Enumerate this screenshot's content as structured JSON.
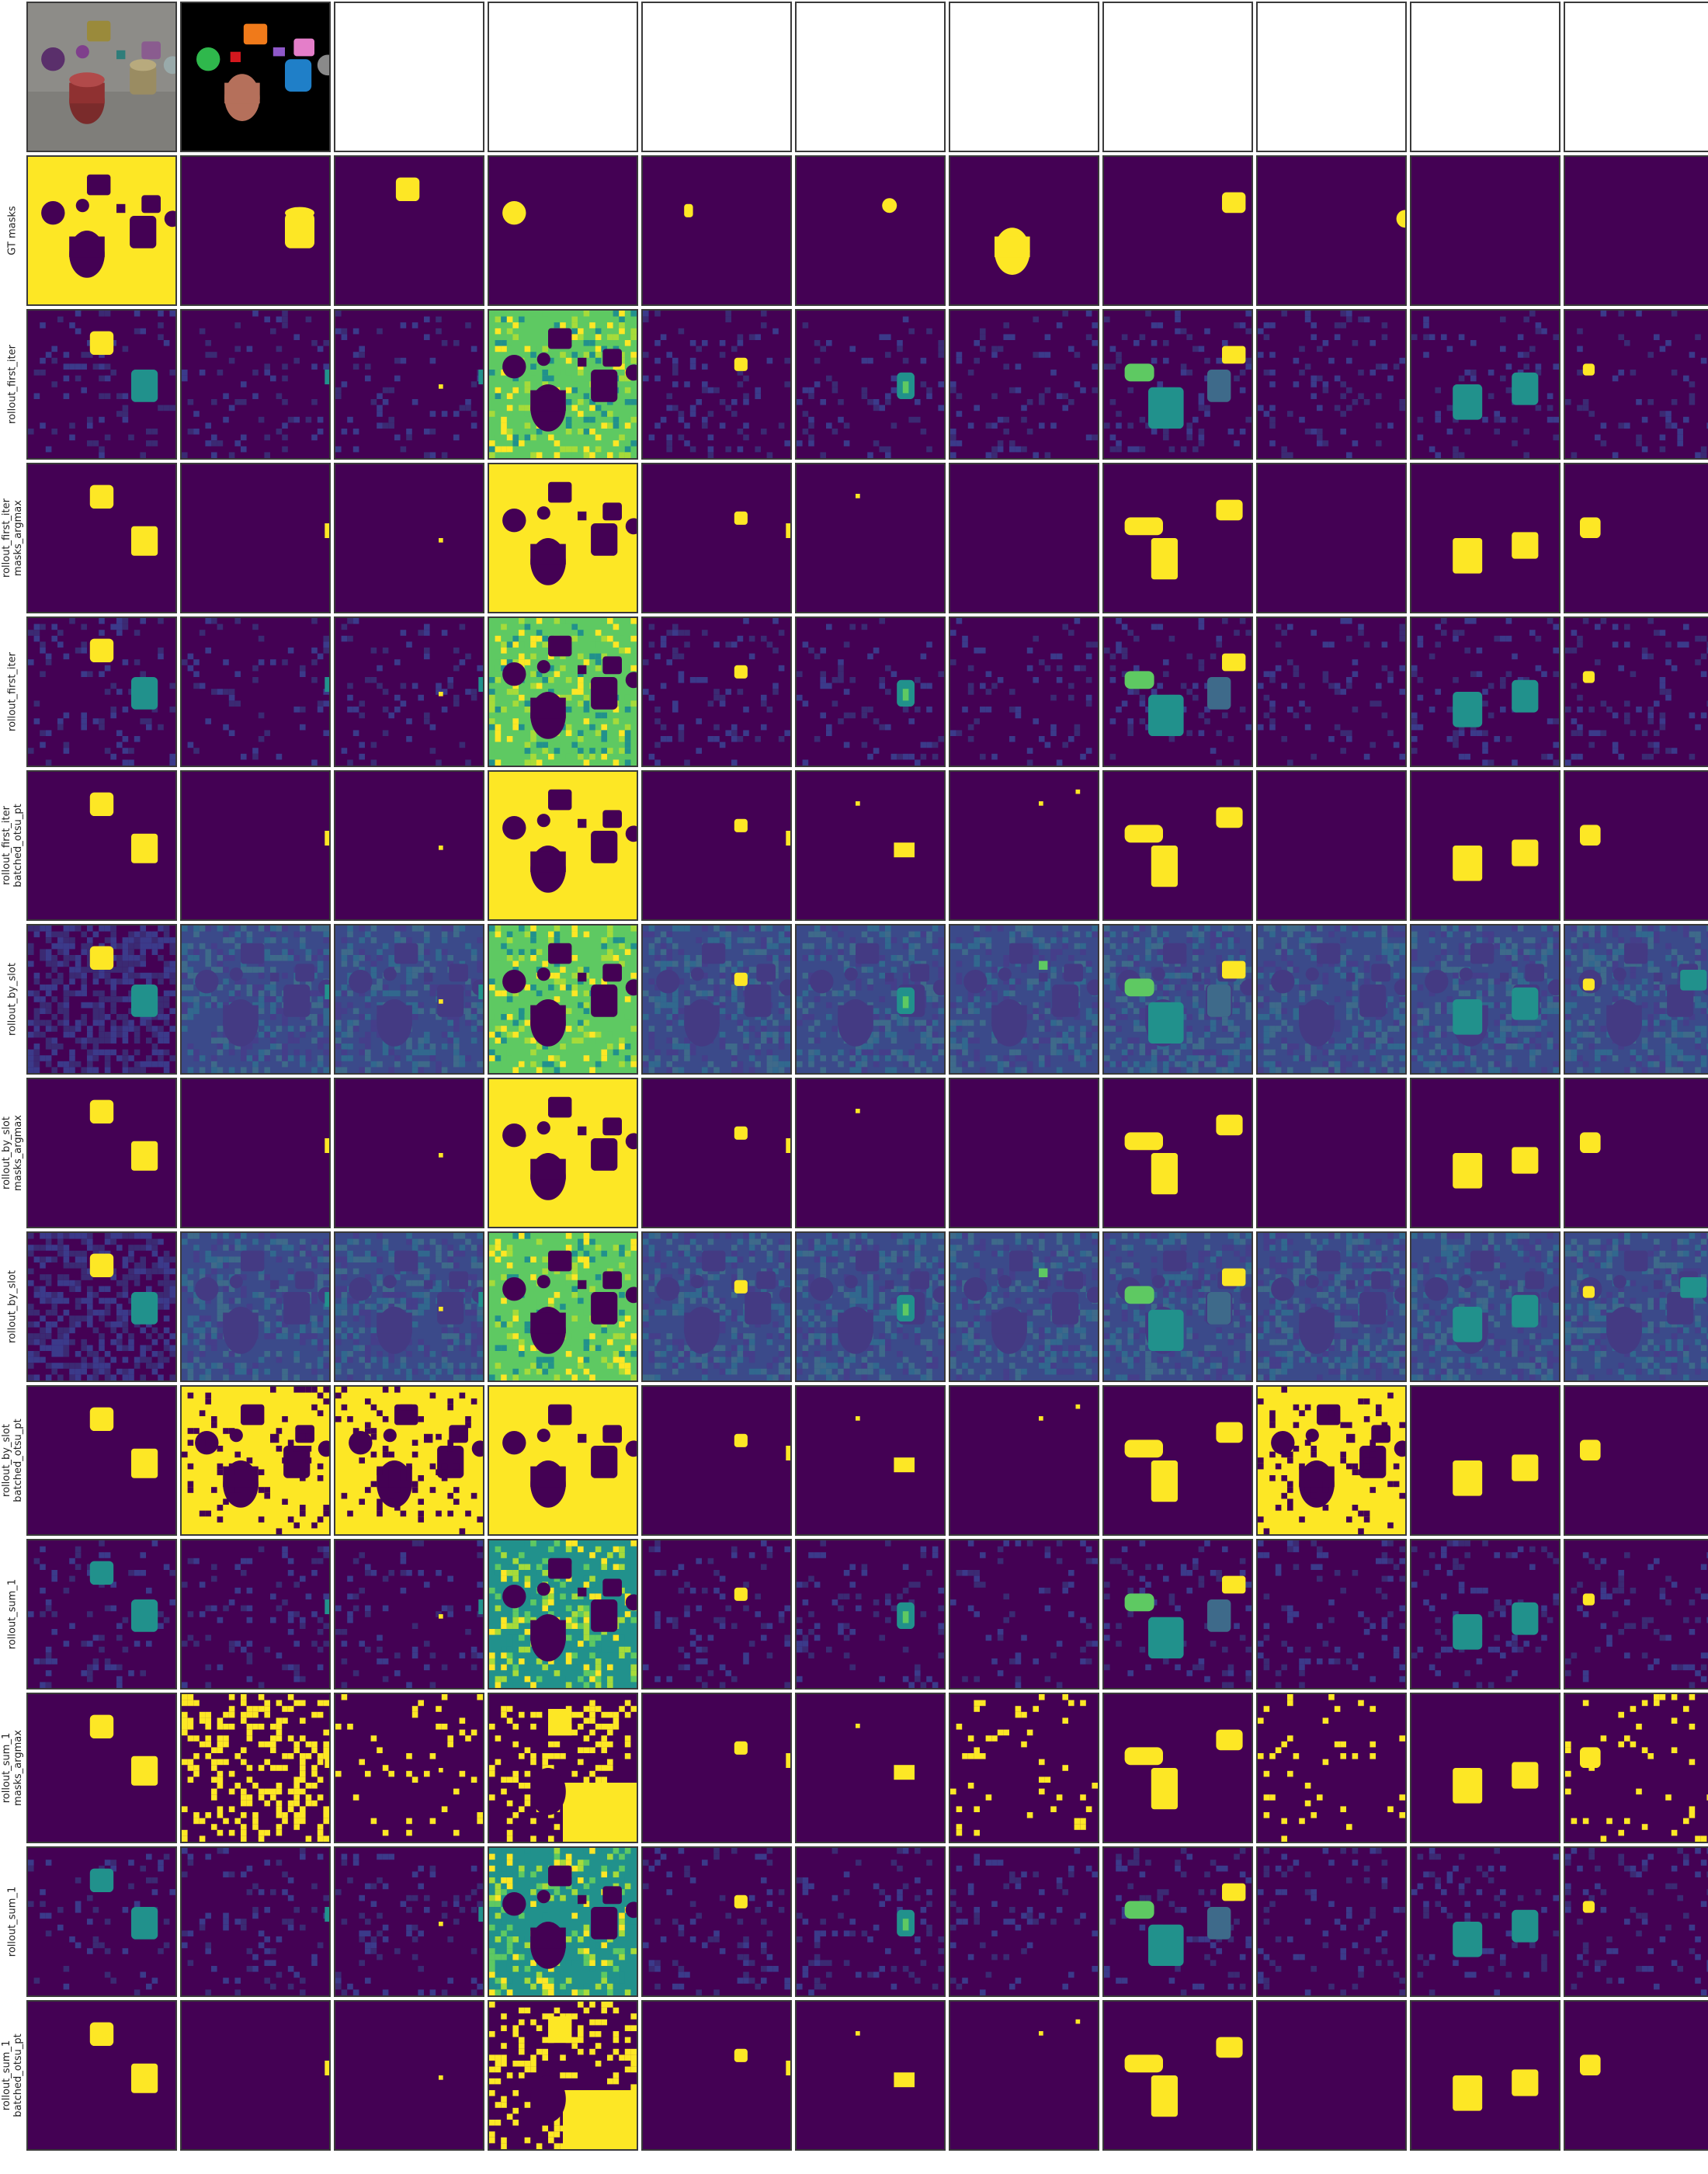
{
  "colors": {
    "dark": "#440154",
    "low": "#3b2a73",
    "mid": "#3e6a8a",
    "teal": "#21918c",
    "green": "#5ec962",
    "yellow": "#fde725"
  },
  "header_row": {
    "image_cell": "clevr-scene-image",
    "gt_color_cell": "gt-color-segmentation"
  },
  "rows": [
    {
      "key": "r0",
      "label_lines": []
    },
    {
      "key": "r1",
      "label_lines": [
        "GT masks"
      ]
    },
    {
      "key": "r2",
      "label_lines": [
        "rollout_first_iter"
      ]
    },
    {
      "key": "r3",
      "label_lines": [
        "rollout_first_iter",
        "masks_argmax"
      ]
    },
    {
      "key": "r4",
      "label_lines": [
        "rollout_first_iter"
      ]
    },
    {
      "key": "r5",
      "label_lines": [
        "rollout_first_iter",
        "batched_otsu_pt"
      ]
    },
    {
      "key": "r6",
      "label_lines": [
        "rollout_by_slot"
      ]
    },
    {
      "key": "r7",
      "label_lines": [
        "rollout_by_slot",
        "masks_argmax"
      ]
    },
    {
      "key": "r8",
      "label_lines": [
        "rollout_by_slot"
      ]
    },
    {
      "key": "r9",
      "label_lines": [
        "rollout_by_slot",
        "batched_otsu_pt"
      ]
    },
    {
      "key": "r10",
      "label_lines": [
        "rollout_sum_1"
      ]
    },
    {
      "key": "r11",
      "label_lines": [
        "rollout_sum_1",
        "masks_argmax"
      ]
    },
    {
      "key": "r12",
      "label_lines": [
        "rollout_sum_1"
      ]
    },
    {
      "key": "r13",
      "label_lines": [
        "rollout_sum_1",
        "batched_otsu_pt"
      ]
    }
  ],
  "columns": 11
}
